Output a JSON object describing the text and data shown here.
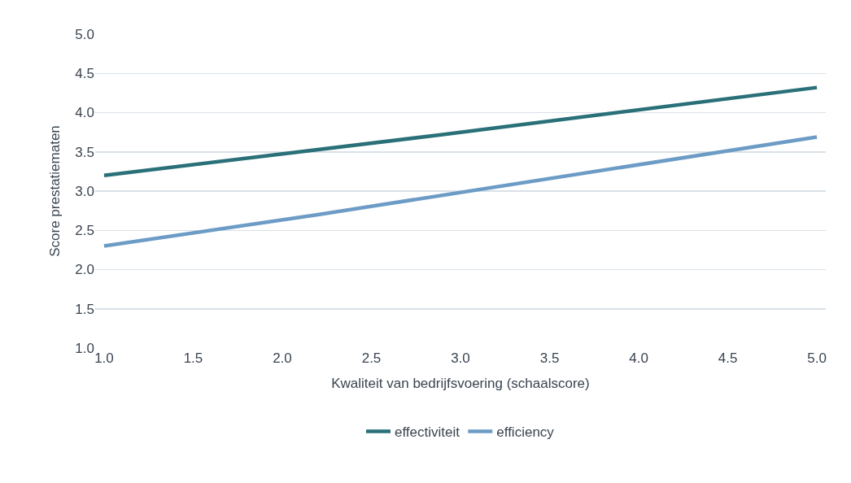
{
  "chart_data": {
    "type": "line",
    "xlabel": "Kwaliteit van bedrijfsvoering (schaalscore)",
    "ylabel": "Score prestatiematen",
    "series": [
      {
        "name": "effectiviteit",
        "color": "#2a7078",
        "x": [
          1,
          2.9,
          5
        ],
        "values": [
          3.2,
          3.72,
          4.32
        ]
      },
      {
        "name": "efficiency",
        "color": "#6c9cc6",
        "x": [
          1,
          2.2,
          5
        ],
        "values": [
          2.3,
          2.7,
          3.69
        ]
      }
    ],
    "xlim": [
      0.95,
      5.05
    ],
    "xticks": [
      {
        "value": 1,
        "label": "1.0"
      },
      {
        "value": 1.5,
        "label": "1.5"
      },
      {
        "value": 2,
        "label": "2.0"
      },
      {
        "value": 2.5,
        "label": "2.5"
      },
      {
        "value": 3,
        "label": "3.0"
      },
      {
        "value": 3.5,
        "label": "3.5"
      },
      {
        "value": 4,
        "label": "4.0"
      },
      {
        "value": 4.5,
        "label": "4.5"
      },
      {
        "value": 5,
        "label": "5.0"
      }
    ],
    "ylim": [
      1,
      5
    ],
    "yticks": [
      {
        "value": 1,
        "label": "1.0"
      },
      {
        "value": 1.5,
        "label": "1.5"
      },
      {
        "value": 2,
        "label": "2.0"
      },
      {
        "value": 2.5,
        "label": "2.5"
      },
      {
        "value": 3,
        "label": "3.0"
      },
      {
        "value": 3.5,
        "label": "3.5"
      },
      {
        "value": 4,
        "label": "4.0"
      },
      {
        "value": 4.5,
        "label": "4.5"
      },
      {
        "value": 5,
        "label": "5.0"
      }
    ],
    "grid": "y",
    "legend": "bottom",
    "marker": "none",
    "line_style": "solid"
  }
}
